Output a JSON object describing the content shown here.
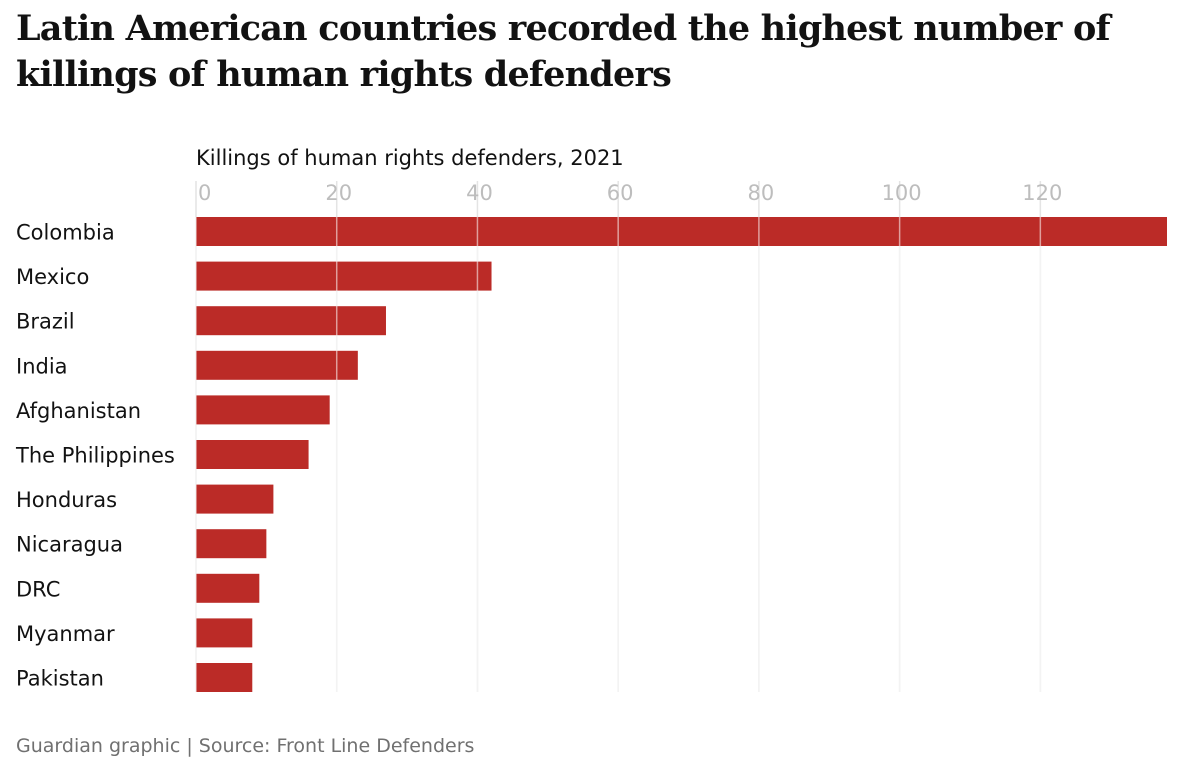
{
  "title": "Latin American countries recorded the highest number of killings of human rights defenders",
  "source": "Guardian graphic | Source: Front Line Defenders",
  "chart_data": {
    "type": "bar",
    "orientation": "horizontal",
    "title": "Latin American countries recorded the highest number of killings of human rights defenders",
    "xlabel": "Killings of human rights defenders, 2021",
    "ylabel": "",
    "categories": [
      "Colombia",
      "Mexico",
      "Brazil",
      "India",
      "Afghanistan",
      "The Philippines",
      "Honduras",
      "Nicaragua",
      "DRC",
      "Myanmar",
      "Pakistan"
    ],
    "values": [
      138,
      42,
      27,
      23,
      19,
      16,
      11,
      10,
      9,
      8,
      8
    ],
    "xlim": [
      0,
      138
    ],
    "xticks": [
      0,
      20,
      40,
      60,
      80,
      100,
      120
    ],
    "axis_position": "top",
    "grid": true,
    "bar_color": "#bb2b27",
    "gridline_color": "#e4e4e4",
    "tick_label_color": "#bdbdbd"
  }
}
